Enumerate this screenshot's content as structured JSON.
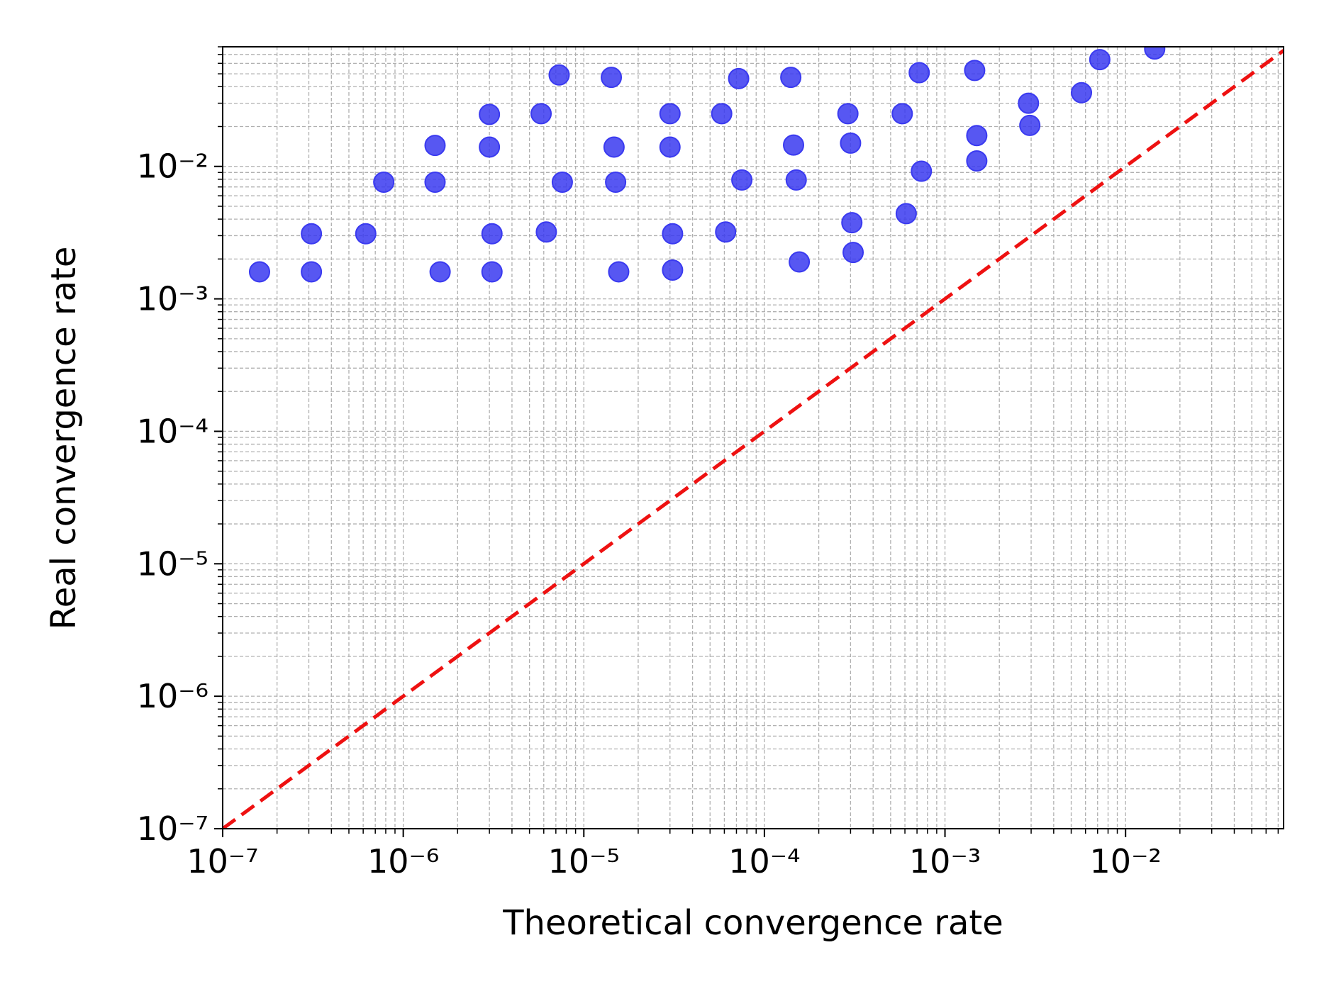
{
  "chart_data": {
    "type": "scatter",
    "x_label": "Theoretical convergence rate",
    "y_label": "Real convergence rate",
    "log_x": true,
    "log_y": true,
    "grid": true,
    "minor_grid": true,
    "xlim": [
      1e-07,
      0.075
    ],
    "ylim": [
      1e-07,
      0.08
    ],
    "xticks": [
      {
        "value": 1e-07,
        "label": "10⁻⁷"
      },
      {
        "value": 1e-06,
        "label": "10⁻⁶"
      },
      {
        "value": 1e-05,
        "label": "10⁻⁵"
      },
      {
        "value": 0.0001,
        "label": "10⁻⁴"
      },
      {
        "value": 0.001,
        "label": "10⁻³"
      },
      {
        "value": 0.01,
        "label": "10⁻²"
      }
    ],
    "yticks": [
      {
        "value": 1e-07,
        "label": "10⁻⁷"
      },
      {
        "value": 1e-06,
        "label": "10⁻⁶"
      },
      {
        "value": 1e-05,
        "label": "10⁻⁵"
      },
      {
        "value": 0.0001,
        "label": "10⁻⁴"
      },
      {
        "value": 0.001,
        "label": "10⁻³"
      },
      {
        "value": 0.01,
        "label": "10⁻²"
      }
    ],
    "series": [
      {
        "color": "#3a3af0",
        "x": [
          1.6e-07,
          3.1e-07,
          3.1e-07,
          6.2e-07,
          7.8e-07,
          1.5e-06,
          1.5e-06,
          1.6e-06,
          3e-06,
          3e-06,
          3.1e-06,
          3.1e-06,
          5.8e-06,
          6.2e-06,
          7.3e-06,
          7.6e-06,
          1.42e-05,
          1.47e-05,
          1.5e-05,
          1.56e-05,
          3e-05,
          3e-05,
          3.1e-05,
          3.1e-05,
          5.8e-05,
          6.1e-05,
          7.2e-05,
          7.5e-05,
          0.00014,
          0.000145,
          0.00015,
          0.000156,
          0.00029,
          0.0003,
          0.000305,
          0.00031,
          0.00058,
          0.00061,
          0.00072,
          0.00074,
          0.00146,
          0.0015,
          0.0015,
          0.0029,
          0.00295,
          0.0057,
          0.0072,
          0.0145
        ],
        "y": [
          0.0016,
          0.0031,
          0.0016,
          0.0031,
          0.0076,
          0.0144,
          0.0076,
          0.0016,
          0.0247,
          0.014,
          0.0031,
          0.0016,
          0.025,
          0.0032,
          0.049,
          0.0076,
          0.047,
          0.014,
          0.0076,
          0.0016,
          0.025,
          0.014,
          0.0031,
          0.00165,
          0.025,
          0.0032,
          0.046,
          0.0079,
          0.047,
          0.0145,
          0.0079,
          0.0019,
          0.025,
          0.015,
          0.00376,
          0.00224,
          0.025,
          0.0044,
          0.051,
          0.0092,
          0.053,
          0.0171,
          0.011,
          0.03,
          0.0204,
          0.036,
          0.064,
          0.077
        ]
      }
    ],
    "reference_line": {
      "x": [
        1e-07,
        0.075
      ],
      "y": [
        1e-07,
        0.075
      ],
      "color": "#ee1111",
      "dashed": true
    }
  }
}
